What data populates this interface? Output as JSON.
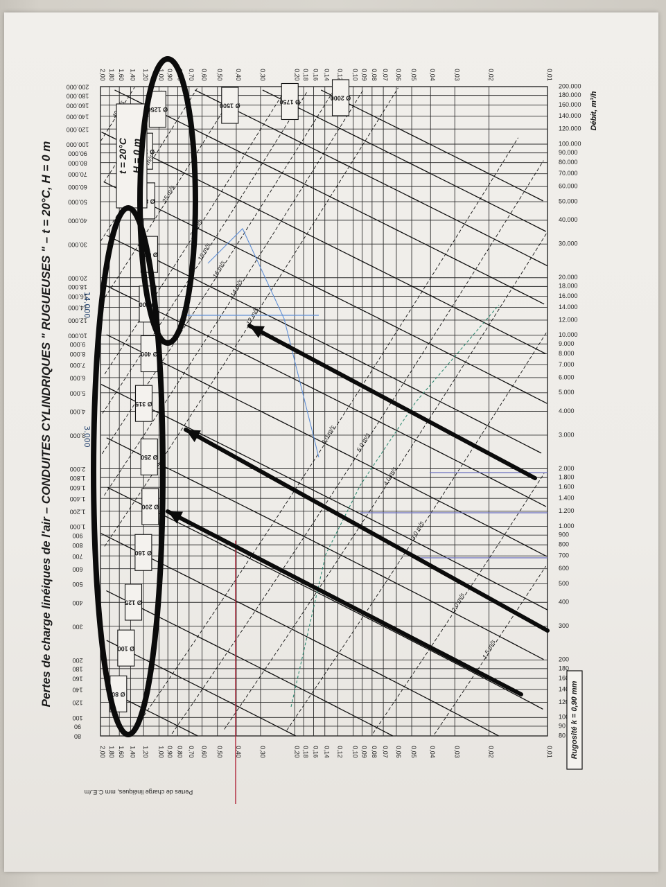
{
  "chart_data": {
    "type": "line",
    "title": "Pertes de charge linéiques de l'air – CONDUITES CYLINDRIQUES \" RUGUEUSES \" – t = 20°C, H = 0 m",
    "xlabel": "Débit, m³/h",
    "ylabel": "Pertes de charge linéiques, mm C.E./m",
    "x_scale": "log",
    "y_scale": "log",
    "xlim": [
      80,
      200000
    ],
    "ylim": [
      0.01,
      2.0
    ],
    "grid": true,
    "x_ticks": [
      "80",
      "90",
      "100",
      "120",
      "140",
      "160",
      "180",
      "200",
      "300",
      "400",
      "500",
      "600",
      "700",
      "800",
      "900",
      "1.000",
      "1.200",
      "1.400",
      "1.600",
      "1.800",
      "2.000",
      "3.000",
      "4.000",
      "5.000",
      "6.000",
      "7.000",
      "8.000",
      "9.000",
      "10.000",
      "12.000",
      "14.000",
      "16.000",
      "18.000",
      "20.000",
      "30.000",
      "40.000",
      "50.000",
      "60.000",
      "70.000",
      "80.000",
      "90.000",
      "100.000",
      "120.000",
      "140.000",
      "160.000",
      "180.000",
      "200.000"
    ],
    "y_ticks": [
      "0,01",
      "0,02",
      "0,03",
      "0,04",
      "0,05",
      "0,06",
      "0,07",
      "0,08",
      "0,09",
      "0,10",
      "0,12",
      "0,14",
      "0,16",
      "0,18",
      "0,20",
      "0,30",
      "0,40",
      "0,50",
      "0,60",
      "0,70",
      "0,80",
      "0,90",
      "1,00",
      "1,20",
      "1,40",
      "1,60",
      "1,80",
      "2,00"
    ],
    "diameters": [
      {
        "label": "Ø 80",
        "d_mm": 80
      },
      {
        "label": "Ø 100",
        "d_mm": 100
      },
      {
        "label": "Ø 125",
        "d_mm": 125
      },
      {
        "label": "Ø 160",
        "d_mm": 160
      },
      {
        "label": "Ø 200",
        "d_mm": 200
      },
      {
        "label": "Ø 250",
        "d_mm": 250
      },
      {
        "label": "Ø 315",
        "d_mm": 315
      },
      {
        "label": "Ø 400",
        "d_mm": 400
      },
      {
        "label": "Ø 500",
        "d_mm": 500
      },
      {
        "label": "Ø 630",
        "d_mm": 630
      },
      {
        "label": "Ø 800",
        "d_mm": 800
      },
      {
        "label": "Ø 1000",
        "d_mm": 1000
      },
      {
        "label": "Ø 1250",
        "d_mm": 1250
      },
      {
        "label": "Ø 1500",
        "d_mm": 1500
      },
      {
        "label": "Ø 1750",
        "d_mm": 1750
      },
      {
        "label": "Ø 2000",
        "d_mm": 2000
      }
    ],
    "velocities": [
      {
        "label": "1,5 m/s",
        "v": 1.5
      },
      {
        "label": "2,0 m/s",
        "v": 2.0
      },
      {
        "label": "3,0 m/s",
        "v": 3.0
      },
      {
        "label": "4,0 m/s",
        "v": 4.0
      },
      {
        "label": "5,0 m/s",
        "v": 5.0
      },
      {
        "label": "6,0 m/s",
        "v": 6.0
      },
      {
        "label": "12 m/s",
        "v": 12
      },
      {
        "label": "14 m/s",
        "v": 14
      },
      {
        "label": "16 m/s",
        "v": 16
      },
      {
        "label": "18 m/s",
        "v": 18
      },
      {
        "label": "20 m/s",
        "v": 20
      },
      {
        "label": "25 m/s",
        "v": 25
      },
      {
        "label": "30 m/s",
        "v": 30
      },
      {
        "label": "35 m/s",
        "v": 35
      },
      {
        "label": "40 m/s",
        "v": 40
      }
    ],
    "annotations": {
      "conditions_t": "t = 20°C",
      "conditions_h": "H = 0 m",
      "roughness": "Rugosité k = 0,90 mm",
      "handwritten_flow_left": "3.000",
      "handwritten_flow_top": "14.000"
    },
    "colors": {
      "grid": "#2a2a2a",
      "ink": "#111111",
      "marker_red": "#b0263a",
      "marker_blue": "#5f8fd6",
      "marker_green": "#2f8a72",
      "marker_violet": "#6b6fc0"
    }
  }
}
